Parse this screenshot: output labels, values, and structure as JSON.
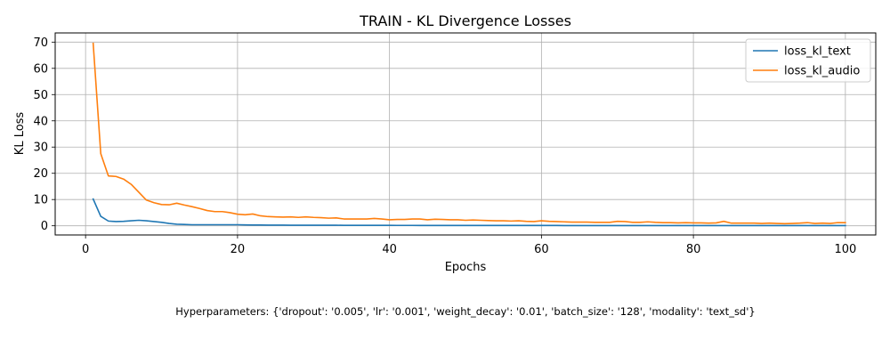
{
  "chart_data": {
    "type": "line",
    "title": "TRAIN - KL Divergence Losses",
    "xlabel": "Epochs",
    "ylabel": "KL Loss",
    "xlim": [
      -4,
      104
    ],
    "ylim": [
      -3.5,
      73.5
    ],
    "xticks": [
      0,
      20,
      40,
      60,
      80,
      100
    ],
    "yticks": [
      0,
      10,
      20,
      30,
      40,
      50,
      60,
      70
    ],
    "grid": true,
    "legend_position": "top-right",
    "series": [
      {
        "name": "loss_kl_text",
        "color": "#1f77b4",
        "x": [
          1,
          2,
          3,
          4,
          5,
          6,
          7,
          8,
          9,
          10,
          11,
          12,
          13,
          14,
          15,
          16,
          17,
          18,
          19,
          20,
          21,
          22,
          23,
          24,
          25,
          26,
          27,
          28,
          29,
          30,
          31,
          32,
          33,
          34,
          35,
          36,
          37,
          38,
          39,
          40,
          41,
          42,
          43,
          44,
          45,
          46,
          47,
          48,
          49,
          50,
          51,
          52,
          53,
          54,
          55,
          56,
          57,
          58,
          59,
          60,
          61,
          62,
          63,
          64,
          65,
          66,
          67,
          68,
          69,
          70,
          71,
          72,
          73,
          74,
          75,
          76,
          77,
          78,
          79,
          80,
          81,
          82,
          83,
          84,
          85,
          86,
          87,
          88,
          89,
          90,
          91,
          92,
          93,
          94,
          95,
          96,
          97,
          98,
          99,
          100
        ],
        "y": [
          10.2,
          3.6,
          1.8,
          1.6,
          1.7,
          1.9,
          2.1,
          1.9,
          1.6,
          1.3,
          0.9,
          0.6,
          0.5,
          0.4,
          0.4,
          0.4,
          0.4,
          0.4,
          0.4,
          0.4,
          0.35,
          0.3,
          0.3,
          0.25,
          0.25,
          0.25,
          0.22,
          0.2,
          0.2,
          0.2,
          0.2,
          0.2,
          0.2,
          0.18,
          0.18,
          0.17,
          0.17,
          0.17,
          0.16,
          0.16,
          0.15,
          0.15,
          0.15,
          0.14,
          0.14,
          0.14,
          0.14,
          0.13,
          0.13,
          0.13,
          0.13,
          0.12,
          0.12,
          0.12,
          0.12,
          0.12,
          0.12,
          0.11,
          0.11,
          0.11,
          0.11,
          0.11,
          0.1,
          0.1,
          0.1,
          0.1,
          0.1,
          0.1,
          0.1,
          0.1,
          0.1,
          0.1,
          0.1,
          0.1,
          0.1,
          0.1,
          0.1,
          0.1,
          0.1,
          0.1,
          0.1,
          0.1,
          0.1,
          0.1,
          0.1,
          0.1,
          0.1,
          0.1,
          0.1,
          0.1,
          0.1,
          0.1,
          0.1,
          0.1,
          0.1,
          0.1,
          0.1,
          0.1,
          0.1,
          0.1
        ]
      },
      {
        "name": "loss_kl_audio",
        "color": "#ff7f0e",
        "x": [
          1,
          2,
          3,
          4,
          5,
          6,
          7,
          8,
          9,
          10,
          11,
          12,
          13,
          14,
          15,
          16,
          17,
          18,
          19,
          20,
          21,
          22,
          23,
          24,
          25,
          26,
          27,
          28,
          29,
          30,
          31,
          32,
          33,
          34,
          35,
          36,
          37,
          38,
          39,
          40,
          41,
          42,
          43,
          44,
          45,
          46,
          47,
          48,
          49,
          50,
          51,
          52,
          53,
          54,
          55,
          56,
          57,
          58,
          59,
          60,
          61,
          62,
          63,
          64,
          65,
          66,
          67,
          68,
          69,
          70,
          71,
          72,
          73,
          74,
          75,
          76,
          77,
          78,
          79,
          80,
          81,
          82,
          83,
          84,
          85,
          86,
          87,
          88,
          89,
          90,
          91,
          92,
          93,
          94,
          95,
          96,
          97,
          98,
          99,
          100
        ],
        "y": [
          69.5,
          27.5,
          19.0,
          18.8,
          17.8,
          15.8,
          12.8,
          9.8,
          8.8,
          8.1,
          8.0,
          8.6,
          7.9,
          7.3,
          6.6,
          5.8,
          5.4,
          5.4,
          5.0,
          4.4,
          4.2,
          4.5,
          3.8,
          3.5,
          3.4,
          3.3,
          3.4,
          3.2,
          3.4,
          3.2,
          3.1,
          2.9,
          3.0,
          2.6,
          2.6,
          2.6,
          2.6,
          2.8,
          2.6,
          2.3,
          2.4,
          2.4,
          2.6,
          2.6,
          2.3,
          2.5,
          2.4,
          2.3,
          2.3,
          2.1,
          2.2,
          2.1,
          2.0,
          1.9,
          1.9,
          1.8,
          1.9,
          1.7,
          1.6,
          1.9,
          1.7,
          1.6,
          1.5,
          1.4,
          1.4,
          1.4,
          1.3,
          1.3,
          1.3,
          1.7,
          1.6,
          1.3,
          1.3,
          1.5,
          1.3,
          1.2,
          1.2,
          1.1,
          1.2,
          1.1,
          1.1,
          1.0,
          1.1,
          1.7,
          1.0,
          1.0,
          1.0,
          1.0,
          0.9,
          1.0,
          0.9,
          0.8,
          0.9,
          1.0,
          1.2,
          0.9,
          1.0,
          0.9,
          1.2,
          1.2
        ]
      }
    ]
  },
  "footer_text": "Hyperparameters: {'dropout': '0.005', 'lr': '0.001', 'weight_decay': '0.01', 'batch_size': '128', 'modality': 'text_sd'}"
}
